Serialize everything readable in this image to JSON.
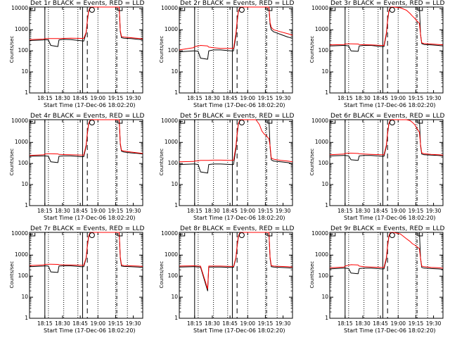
{
  "colors": {
    "events": "#000000",
    "lld": "#ff0000",
    "axis": "#000000",
    "background": "#ffffff"
  },
  "x_tick_labels": [
    "18:15",
    "18:30",
    "18:45",
    "19:00",
    "19:15",
    "19:30"
  ],
  "x_label": "Start Time (17-Dec-06 18:02:20)",
  "y_label": "Counts/sec",
  "y_tick_labels": [
    "1",
    "10",
    "100",
    "1000",
    "10000"
  ],
  "chart_data": [
    {
      "type": "line",
      "title": "Det 1r BLACK = Events, RED = LLD",
      "xlabel": "Start Time (17-Dec-06 18:02:20)",
      "ylabel": "Counts/sec",
      "log_y": true,
      "ylim": [
        1,
        12000
      ],
      "x_minutes": [
        0,
        12,
        13,
        16,
        18,
        24,
        25,
        29,
        35,
        44,
        46,
        48,
        49,
        50,
        51,
        52,
        54,
        60,
        65,
        68,
        70,
        72,
        74,
        76,
        77,
        78,
        80,
        86,
        92,
        96
      ],
      "series": [
        {
          "name": "Events",
          "values": [
            310,
            330,
            340,
            330,
            180,
            160,
            330,
            350,
            340,
            300,
            290,
            700,
            2500,
            7000,
            10000,
            12000,
            12000,
            12000,
            12000,
            12000,
            12000,
            12000,
            12000,
            12000,
            800,
            420,
            400,
            380,
            350,
            340
          ]
        },
        {
          "name": "LLD",
          "values": [
            340,
            360,
            380,
            380,
            380,
            380,
            380,
            390,
            400,
            390,
            390,
            750,
            2700,
            7500,
            10500,
            12000,
            12000,
            12000,
            12000,
            12000,
            12000,
            12000,
            12000,
            12000,
            900,
            480,
            450,
            420,
            390,
            370
          ]
        }
      ]
    },
    {
      "type": "line",
      "title": "Det 2r BLACK = Events, RED = LLD",
      "xlabel": "Start Time (17-Dec-06 18:02:20)",
      "ylabel": "Counts/sec",
      "log_y": true,
      "ylim": [
        1,
        12000
      ],
      "x_minutes": [
        0,
        12,
        13,
        16,
        18,
        24,
        25,
        29,
        35,
        44,
        46,
        48,
        49,
        50,
        51,
        52,
        54,
        60,
        65,
        68,
        70,
        72,
        74,
        76,
        77,
        78,
        80,
        86,
        92,
        96
      ],
      "series": [
        {
          "name": "Events",
          "values": [
            90,
            100,
            100,
            95,
            45,
            40,
            100,
            110,
            110,
            100,
            100,
            500,
            2200,
            7000,
            10000,
            12000,
            12000,
            12000,
            12000,
            12000,
            12000,
            12000,
            12000,
            12000,
            1800,
            1000,
            800,
            600,
            450,
            400
          ]
        },
        {
          "name": "LLD",
          "values": [
            110,
            140,
            160,
            170,
            180,
            170,
            150,
            140,
            130,
            130,
            130,
            650,
            2600,
            7500,
            10500,
            12000,
            12000,
            12000,
            12000,
            12000,
            12000,
            12000,
            12000,
            12000,
            2200,
            1300,
            1000,
            800,
            650,
            550
          ]
        }
      ]
    },
    {
      "type": "line",
      "title": "Det 3r BLACK = Events, RED = LLD",
      "xlabel": "Start Time (17-Dec-06 18:02:20)",
      "ylabel": "Counts/sec",
      "log_y": true,
      "ylim": [
        1,
        12000
      ],
      "x_minutes": [
        0,
        12,
        13,
        16,
        18,
        24,
        25,
        29,
        35,
        44,
        46,
        48,
        49,
        50,
        51,
        52,
        54,
        60,
        65,
        68,
        70,
        72,
        74,
        76,
        77,
        78,
        80,
        86,
        92,
        96
      ],
      "series": [
        {
          "name": "Events",
          "values": [
            170,
            180,
            180,
            170,
            100,
            95,
            170,
            180,
            180,
            160,
            160,
            600,
            2500,
            7000,
            10000,
            12000,
            12000,
            12000,
            12000,
            12000,
            12000,
            12000,
            12000,
            12000,
            600,
            220,
            200,
            190,
            180,
            170
          ]
        },
        {
          "name": "LLD",
          "values": [
            190,
            200,
            210,
            215,
            215,
            210,
            200,
            195,
            190,
            180,
            180,
            700,
            2800,
            7500,
            10500,
            12000,
            12000,
            11000,
            8500,
            6000,
            4500,
            3500,
            2600,
            2000,
            600,
            240,
            220,
            210,
            200,
            190
          ]
        }
      ]
    },
    {
      "type": "line",
      "title": "Det 4r BLACK = Events, RED = LLD",
      "xlabel": "Start Time (17-Dec-06 18:02:20)",
      "ylabel": "Counts/sec",
      "log_y": true,
      "ylim": [
        1,
        12000
      ],
      "x_minutes": [
        0,
        12,
        13,
        16,
        18,
        24,
        25,
        29,
        35,
        44,
        46,
        48,
        49,
        50,
        51,
        52,
        54,
        60,
        65,
        68,
        70,
        72,
        74,
        76,
        77,
        78,
        80,
        86,
        92,
        96
      ],
      "series": [
        {
          "name": "Events",
          "values": [
            220,
            230,
            230,
            220,
            120,
            110,
            220,
            230,
            230,
            210,
            210,
            650,
            2500,
            7000,
            10000,
            12000,
            12000,
            12000,
            12000,
            12000,
            12000,
            12000,
            12000,
            12000,
            800,
            380,
            350,
            320,
            300,
            280
          ]
        },
        {
          "name": "LLD",
          "values": [
            240,
            260,
            280,
            290,
            290,
            285,
            270,
            265,
            260,
            250,
            250,
            750,
            2800,
            7500,
            10500,
            12000,
            12000,
            12000,
            12000,
            12000,
            12000,
            12000,
            12000,
            12000,
            900,
            420,
            390,
            350,
            320,
            300
          ]
        }
      ]
    },
    {
      "type": "line",
      "title": "Det 5r BLACK = Events, RED = LLD",
      "xlabel": "Start Time (17-Dec-06 18:02:20)",
      "ylabel": "Counts/sec",
      "log_y": true,
      "ylim": [
        1,
        12000
      ],
      "x_minutes": [
        0,
        12,
        13,
        16,
        18,
        24,
        25,
        29,
        35,
        44,
        46,
        48,
        49,
        50,
        51,
        52,
        54,
        60,
        65,
        68,
        70,
        72,
        74,
        76,
        77,
        78,
        80,
        86,
        92,
        96
      ],
      "series": [
        {
          "name": "Events",
          "values": [
            90,
            95,
            95,
            90,
            40,
            35,
            90,
            95,
            95,
            90,
            90,
            500,
            2200,
            7000,
            10000,
            12000,
            12000,
            12000,
            12000,
            12000,
            12000,
            12000,
            12000,
            12000,
            600,
            150,
            130,
            120,
            110,
            100
          ]
        },
        {
          "name": "LLD",
          "values": [
            120,
            125,
            130,
            135,
            140,
            140,
            140,
            145,
            145,
            140,
            140,
            650,
            2600,
            7500,
            10500,
            12000,
            12000,
            12000,
            12000,
            7000,
            3500,
            2500,
            2000,
            1500,
            700,
            180,
            160,
            140,
            130,
            120
          ]
        }
      ]
    },
    {
      "type": "line",
      "title": "Det 6r BLACK = Events, RED = LLD",
      "xlabel": "Start Time (17-Dec-06 18:02:20)",
      "ylabel": "Counts/sec",
      "log_y": true,
      "ylim": [
        1,
        12000
      ],
      "x_minutes": [
        0,
        12,
        13,
        16,
        18,
        24,
        25,
        29,
        35,
        44,
        46,
        48,
        49,
        50,
        51,
        52,
        54,
        60,
        65,
        68,
        70,
        72,
        74,
        76,
        77,
        78,
        80,
        86,
        92,
        96
      ],
      "series": [
        {
          "name": "Events",
          "values": [
            230,
            240,
            240,
            230,
            150,
            140,
            230,
            240,
            240,
            220,
            220,
            650,
            2500,
            7000,
            10000,
            12000,
            12000,
            12000,
            12000,
            12000,
            12000,
            12000,
            12000,
            12000,
            700,
            280,
            260,
            250,
            240,
            230
          ]
        },
        {
          "name": "LLD",
          "values": [
            260,
            280,
            300,
            310,
            310,
            300,
            290,
            280,
            270,
            260,
            260,
            750,
            2800,
            7500,
            10500,
            12000,
            12000,
            12000,
            12000,
            11000,
            9000,
            7000,
            4500,
            3000,
            800,
            320,
            290,
            270,
            260,
            250
          ]
        }
      ]
    },
    {
      "type": "line",
      "title": "Det 7r BLACK = Events, RED = LLD",
      "xlabel": "Start Time (17-Dec-06 18:02:20)",
      "ylabel": "Counts/sec",
      "log_y": true,
      "ylim": [
        1,
        12000
      ],
      "x_minutes": [
        0,
        12,
        13,
        16,
        18,
        24,
        25,
        29,
        35,
        44,
        46,
        48,
        49,
        50,
        51,
        52,
        54,
        60,
        65,
        68,
        70,
        72,
        74,
        76,
        77,
        78,
        80,
        86,
        92,
        96
      ],
      "series": [
        {
          "name": "Events",
          "values": [
            280,
            300,
            310,
            300,
            160,
            150,
            300,
            310,
            310,
            280,
            280,
            700,
            2500,
            7000,
            10000,
            12000,
            12000,
            12000,
            12000,
            12000,
            12000,
            12000,
            12000,
            12000,
            700,
            300,
            290,
            280,
            270,
            260
          ]
        },
        {
          "name": "LLD",
          "values": [
            320,
            340,
            360,
            370,
            370,
            360,
            350,
            345,
            340,
            330,
            330,
            750,
            2800,
            7500,
            10500,
            12000,
            12000,
            12000,
            12000,
            12000,
            12000,
            12000,
            12000,
            12000,
            800,
            340,
            320,
            310,
            300,
            290
          ]
        }
      ]
    },
    {
      "type": "line",
      "title": "Det 8r BLACK = Events, RED = LLD",
      "xlabel": "Start Time (17-Dec-06 18:02:20)",
      "ylabel": "Counts/sec",
      "log_y": true,
      "ylim": [
        1,
        12000
      ],
      "x_minutes": [
        0,
        12,
        13,
        16,
        18,
        24,
        25,
        29,
        35,
        44,
        46,
        48,
        49,
        50,
        51,
        52,
        54,
        60,
        65,
        68,
        70,
        72,
        74,
        76,
        77,
        78,
        80,
        86,
        92,
        96
      ],
      "series": [
        {
          "name": "Events",
          "values": [
            270,
            280,
            280,
            270,
            270,
            20,
            270,
            270,
            270,
            260,
            260,
            700,
            2500,
            7000,
            10000,
            12000,
            12000,
            12000,
            12000,
            12000,
            12000,
            12000,
            12000,
            12000,
            700,
            280,
            270,
            260,
            250,
            240
          ]
        },
        {
          "name": "LLD",
          "values": [
            300,
            310,
            310,
            300,
            300,
            25,
            300,
            300,
            300,
            290,
            290,
            750,
            2800,
            7500,
            10500,
            12000,
            12000,
            12000,
            12000,
            12000,
            12000,
            12000,
            12000,
            12000,
            800,
            320,
            300,
            290,
            280,
            270
          ]
        }
      ]
    },
    {
      "type": "line",
      "title": "Det 9r BLACK = Events, RED = LLD",
      "xlabel": "Start Time (17-Dec-06 18:02:20)",
      "ylabel": "Counts/sec",
      "log_y": true,
      "ylim": [
        1,
        12000
      ],
      "x_minutes": [
        0,
        12,
        13,
        16,
        18,
        24,
        25,
        29,
        35,
        44,
        46,
        48,
        49,
        50,
        51,
        52,
        54,
        60,
        65,
        68,
        70,
        72,
        74,
        76,
        77,
        78,
        80,
        86,
        92,
        96
      ],
      "series": [
        {
          "name": "Events",
          "values": [
            220,
            240,
            240,
            230,
            140,
            130,
            230,
            240,
            240,
            220,
            220,
            650,
            2500,
            7000,
            10000,
            12000,
            12000,
            12000,
            12000,
            12000,
            12000,
            12000,
            12000,
            12000,
            700,
            260,
            240,
            230,
            220,
            210
          ]
        },
        {
          "name": "LLD",
          "values": [
            250,
            270,
            300,
            330,
            350,
            340,
            300,
            280,
            270,
            260,
            260,
            750,
            2800,
            7500,
            10500,
            12000,
            12000,
            10000,
            6000,
            4500,
            3500,
            3000,
            2500,
            2000,
            700,
            300,
            280,
            260,
            250,
            240
          ]
        }
      ]
    }
  ]
}
